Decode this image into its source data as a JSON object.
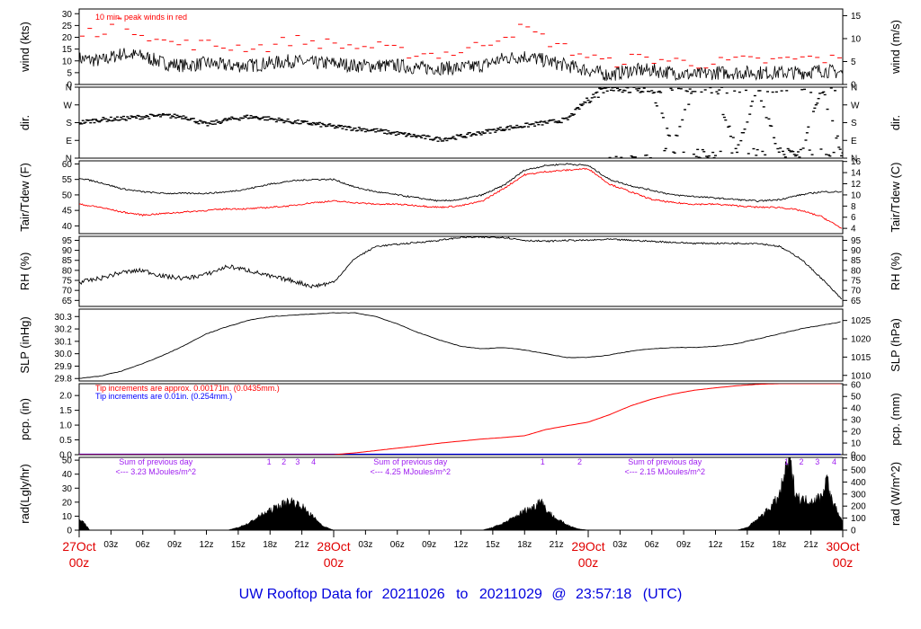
{
  "footer": {
    "title_prefix": "UW Rooftop Data for",
    "start": "20211026",
    "to_word": "to",
    "end": "20211029",
    "at": "@",
    "time": "23:57:18",
    "tz": "(UTC)"
  },
  "colors": {
    "black": "#000000",
    "red": "#ff0000",
    "blue": "#0000ff",
    "purple": "#a020f0",
    "footer_blue": "#0000dd"
  },
  "x_axis": {
    "hour_ticks": [
      "03z",
      "06z",
      "09z",
      "12z",
      "15z",
      "18z",
      "21z",
      "03z",
      "06z",
      "09z",
      "12z",
      "15z",
      "18z",
      "21z",
      "03z",
      "06z",
      "09z",
      "12z",
      "15z",
      "18z",
      "21z"
    ],
    "hour_values": [
      3,
      6,
      9,
      12,
      15,
      18,
      21,
      27,
      30,
      33,
      36,
      39,
      42,
      45,
      51,
      54,
      57,
      60,
      63,
      66,
      69
    ],
    "day_labels": [
      {
        "day": "27Oct",
        "hour": "00z",
        "x": 0
      },
      {
        "day": "28Oct",
        "hour": "00z",
        "x": 24
      },
      {
        "day": "29Oct",
        "hour": "00z",
        "x": 48
      },
      {
        "day": "30Oct",
        "hour": "00z",
        "x": 72
      }
    ],
    "range_hours": [
      0,
      72
    ]
  },
  "panels": {
    "wind": {
      "left_label": "wind (kts)",
      "right_label": "wind (m/s)",
      "left_ticks": [
        "0",
        "5",
        "10",
        "15",
        "20",
        "25",
        "30"
      ],
      "right_ticks": [
        "0",
        "5",
        "10",
        "15"
      ],
      "note": "10 min. peak winds in red"
    },
    "dir": {
      "left_label": "dir.",
      "right_label": "dir.",
      "left_ticks": [
        "N",
        "E",
        "S",
        "W",
        "N"
      ],
      "right_ticks": [
        "N",
        "E",
        "S",
        "W",
        "N"
      ]
    },
    "temp": {
      "left_label": "Tair/Tdew (F)",
      "right_label": "Tair/Tdew (C)",
      "left_ticks": [
        "40",
        "45",
        "50",
        "55",
        "60"
      ],
      "right_ticks": [
        "4",
        "6",
        "8",
        "10",
        "12",
        "14",
        "16"
      ]
    },
    "rh": {
      "left_label": "RH (%)",
      "right_label": "RH (%)",
      "left_ticks": [
        "65",
        "70",
        "75",
        "80",
        "85",
        "90",
        "95"
      ],
      "right_ticks": [
        "65",
        "70",
        "75",
        "80",
        "85",
        "90",
        "95"
      ]
    },
    "slp": {
      "left_label": "SLP (inHg)",
      "right_label": "SLP (hPa)",
      "left_ticks": [
        "29.8",
        "29.9",
        "30.0",
        "30.1",
        "30.2",
        "30.3"
      ],
      "right_ticks": [
        "1010",
        "1015",
        "1020",
        "1025"
      ]
    },
    "pcp": {
      "left_label": "pcp. (in)",
      "right_label": "pcp. (mm)",
      "left_ticks": [
        "0.0",
        "0.5",
        "1.0",
        "1.5",
        "2.0"
      ],
      "right_ticks": [
        "0",
        "10",
        "20",
        "30",
        "40",
        "50",
        "60"
      ],
      "note_red": "Tip increments are approx. 0.00171in. (0.0435mm.)",
      "note_blue": "Tip increments are 0.01in. (0.254mm.)"
    },
    "rad": {
      "left_label": "rad(Lgly/hr)",
      "right_label": "rad (W/m^2)",
      "left_ticks": [
        "0",
        "10",
        "20",
        "30",
        "40",
        "50"
      ],
      "right_ticks": [
        "0",
        "100",
        "200",
        "300",
        "400",
        "500",
        "600"
      ],
      "day_notes": [
        {
          "line1": "Sum of previous day",
          "line2": "<--- 3.23 MJoules/m^2",
          "x": 3.5
        },
        {
          "line1": "Sum of previous day",
          "line2": "<--- 4.25 MJoules/m^2",
          "x": 27.5
        },
        {
          "line1": "Sum of previous day",
          "line2": "<--- 2.15 MJoules/m^2",
          "x": 51.5
        }
      ],
      "hour_markers": [
        {
          "label": "1",
          "x": 17.9
        },
        {
          "label": "2",
          "x": 19.3
        },
        {
          "label": "3",
          "x": 20.6
        },
        {
          "label": "4",
          "x": 22.1
        },
        {
          "label": "1",
          "x": 43.7
        },
        {
          "label": "2",
          "x": 47.2
        },
        {
          "label": "1",
          "x": 66.7
        },
        {
          "label": "2",
          "x": 68.1
        },
        {
          "label": "3",
          "x": 69.6
        },
        {
          "label": "4",
          "x": 71.2
        }
      ]
    }
  },
  "chart_data": [
    {
      "type": "line",
      "title": "",
      "xlabel": "",
      "ylabel": "wind (kts)",
      "ylim": [
        0,
        32
      ],
      "x": [
        0,
        2,
        4,
        6,
        8,
        10,
        12,
        14,
        16,
        18,
        20,
        22,
        24,
        26,
        28,
        30,
        32,
        34,
        36,
        38,
        40,
        42,
        44,
        46,
        48,
        50,
        52,
        54,
        56,
        58,
        60,
        62,
        64,
        66,
        68,
        70,
        72
      ],
      "series": [
        {
          "name": "wind",
          "values": [
            11,
            10,
            13,
            12,
            9,
            8,
            9,
            8,
            8,
            9,
            10,
            9,
            9,
            8,
            8,
            8,
            7,
            7,
            7,
            8,
            11,
            12,
            10,
            8,
            6,
            4,
            6,
            6,
            5,
            4,
            5,
            5,
            5,
            5,
            5,
            6,
            5
          ]
        },
        {
          "name": "10 min. peak winds in red",
          "values": [
            21,
            23,
            26,
            22,
            18,
            17,
            17,
            16,
            16,
            16,
            19,
            18,
            17,
            16,
            16,
            14,
            13,
            13,
            14,
            17,
            21,
            24,
            19,
            15,
            12,
            9,
            11,
            11,
            10,
            9,
            9,
            10,
            10,
            10,
            11,
            11,
            10
          ]
        }
      ]
    },
    {
      "type": "scatter",
      "title": "",
      "xlabel": "",
      "ylabel": "dir.",
      "ylim": [
        0,
        360
      ],
      "x": [
        0,
        2,
        4,
        6,
        8,
        10,
        12,
        14,
        16,
        18,
        20,
        22,
        24,
        26,
        28,
        30,
        32,
        34,
        36,
        38,
        40,
        42,
        44,
        46,
        48,
        50,
        52,
        54,
        56,
        58,
        60,
        62,
        64,
        66,
        68,
        70,
        72
      ],
      "series": [
        {
          "name": "dir",
          "values": [
            180,
            195,
            200,
            210,
            215,
            210,
            170,
            195,
            210,
            200,
            185,
            175,
            160,
            150,
            140,
            125,
            110,
            95,
            110,
            130,
            150,
            165,
            180,
            195,
            300,
            360,
            350,
            355,
            60,
            355,
            355,
            45,
            355,
            30,
            20,
            355,
            10
          ]
        }
      ]
    },
    {
      "type": "line",
      "title": "",
      "xlabel": "",
      "ylabel": "Tair/Tdew (F)",
      "ylim": [
        37.5,
        61
      ],
      "x": [
        0,
        2,
        4,
        6,
        8,
        10,
        12,
        14,
        16,
        18,
        20,
        22,
        24,
        26,
        28,
        30,
        32,
        34,
        36,
        38,
        40,
        42,
        44,
        46,
        48,
        50,
        52,
        54,
        56,
        58,
        60,
        62,
        64,
        66,
        68,
        70,
        72
      ],
      "series": [
        {
          "name": "Tair",
          "values": [
            55.5,
            54,
            52,
            51,
            50.5,
            50.5,
            50.5,
            51,
            52,
            53.5,
            54.5,
            55,
            55,
            52.5,
            51,
            50,
            49,
            48,
            48.5,
            50,
            53,
            58,
            59.5,
            60,
            59.5,
            55,
            53,
            51.5,
            50,
            49.5,
            49,
            48.5,
            48,
            48.5,
            50,
            51,
            51
          ]
        },
        {
          "name": "Tdew",
          "values": [
            47,
            46,
            44.5,
            43.5,
            44,
            44.5,
            45,
            45.5,
            45.5,
            46,
            46.5,
            47.5,
            48,
            47.5,
            47,
            47,
            46.5,
            46,
            46.5,
            48,
            52,
            56.5,
            57.5,
            58,
            58.5,
            53.5,
            51,
            48.5,
            47.5,
            47,
            47,
            46.5,
            46,
            46,
            45,
            43,
            39
          ]
        }
      ]
    },
    {
      "type": "line",
      "title": "",
      "xlabel": "",
      "ylabel": "RH (%)",
      "ylim": [
        62,
        97
      ],
      "x": [
        0,
        2,
        4,
        6,
        8,
        10,
        12,
        14,
        16,
        18,
        20,
        22,
        24,
        26,
        28,
        30,
        32,
        34,
        36,
        38,
        40,
        42,
        44,
        46,
        48,
        50,
        52,
        54,
        56,
        58,
        60,
        62,
        64,
        66,
        68,
        70,
        72
      ],
      "series": [
        {
          "name": "RH",
          "values": [
            74,
            76,
            79,
            80,
            77,
            76,
            78,
            82,
            80,
            77,
            75,
            72,
            74,
            86,
            92,
            93,
            94,
            95,
            96.5,
            96.5,
            96.5,
            95,
            94.5,
            95,
            95,
            95.5,
            95,
            94.5,
            94,
            93.5,
            93.5,
            93.5,
            93.5,
            92,
            86,
            76,
            65
          ]
        }
      ]
    },
    {
      "type": "line",
      "title": "",
      "xlabel": "",
      "ylabel": "SLP (inHg)",
      "ylim": [
        29.78,
        30.36
      ],
      "x": [
        0,
        2,
        4,
        6,
        8,
        10,
        12,
        14,
        16,
        18,
        20,
        22,
        24,
        26,
        28,
        30,
        32,
        34,
        36,
        38,
        40,
        42,
        44,
        46,
        48,
        50,
        52,
        54,
        56,
        58,
        60,
        62,
        64,
        66,
        68,
        70,
        72
      ],
      "series": [
        {
          "name": "SLP",
          "values": [
            29.8,
            29.82,
            29.86,
            29.92,
            29.99,
            30.07,
            30.16,
            30.22,
            30.27,
            30.3,
            30.31,
            30.32,
            30.33,
            30.33,
            30.3,
            30.24,
            30.17,
            30.11,
            30.06,
            30.04,
            30.05,
            30.03,
            30.0,
            29.97,
            29.97,
            29.99,
            30.02,
            30.04,
            30.05,
            30.05,
            30.06,
            30.08,
            30.12,
            30.16,
            30.2,
            30.23,
            30.26
          ]
        }
      ]
    },
    {
      "type": "line",
      "title": "",
      "xlabel": "",
      "ylabel": "pcp. (in)",
      "ylim": [
        0,
        2.4
      ],
      "x": [
        0,
        2,
        4,
        6,
        8,
        10,
        12,
        14,
        16,
        18,
        20,
        22,
        24,
        26,
        28,
        30,
        32,
        34,
        36,
        38,
        40,
        42,
        44,
        46,
        48,
        50,
        52,
        54,
        56,
        58,
        60,
        62,
        64,
        66,
        68,
        70,
        72
      ],
      "series": [
        {
          "name": "Tip increments are approx. 0.00171in. (0.0435mm.)",
          "values": [
            0,
            0,
            0,
            0,
            0,
            0,
            0,
            0,
            0,
            0,
            0,
            0,
            0,
            0.06,
            0.14,
            0.22,
            0.3,
            0.39,
            0.46,
            0.53,
            0.58,
            0.64,
            0.85,
            0.98,
            1.1,
            1.35,
            1.65,
            1.88,
            2.05,
            2.18,
            2.26,
            2.33,
            2.38,
            2.4,
            2.4,
            2.4,
            2.4
          ]
        },
        {
          "name": "Tip increments are 0.01in. (0.254mm.)",
          "values": [
            0,
            0,
            0,
            0,
            0,
            0,
            0,
            0,
            0,
            0,
            0,
            0,
            0,
            0,
            0,
            0,
            0,
            0,
            0,
            0,
            0,
            0,
            0,
            0,
            0,
            0,
            0,
            0,
            0,
            0,
            0,
            0,
            0,
            0,
            0,
            0,
            0
          ]
        }
      ]
    },
    {
      "type": "area",
      "title": "",
      "xlabel": "",
      "ylabel": "rad(Lgly/hr)",
      "ylim": [
        0,
        52
      ],
      "x": [
        0,
        0.5,
        1,
        14,
        15,
        16,
        17,
        18,
        19,
        20,
        21,
        22,
        23,
        24,
        38,
        39,
        40,
        41,
        42,
        43,
        43.5,
        44,
        45,
        46,
        47,
        48,
        62,
        63,
        64,
        65,
        66,
        66.5,
        67,
        67.5,
        68,
        69,
        70,
        70.5,
        71,
        71.5,
        72
      ],
      "series": [
        {
          "name": "rad",
          "values": [
            7,
            5,
            0,
            0,
            2,
            5,
            10,
            14,
            18,
            21,
            17,
            10,
            3,
            0,
            0,
            2,
            5,
            9,
            14,
            17,
            23,
            15,
            8,
            4,
            1,
            0,
            0,
            2,
            8,
            15,
            24,
            40,
            50,
            28,
            22,
            21,
            24,
            38,
            20,
            14,
            5
          ]
        }
      ]
    }
  ]
}
